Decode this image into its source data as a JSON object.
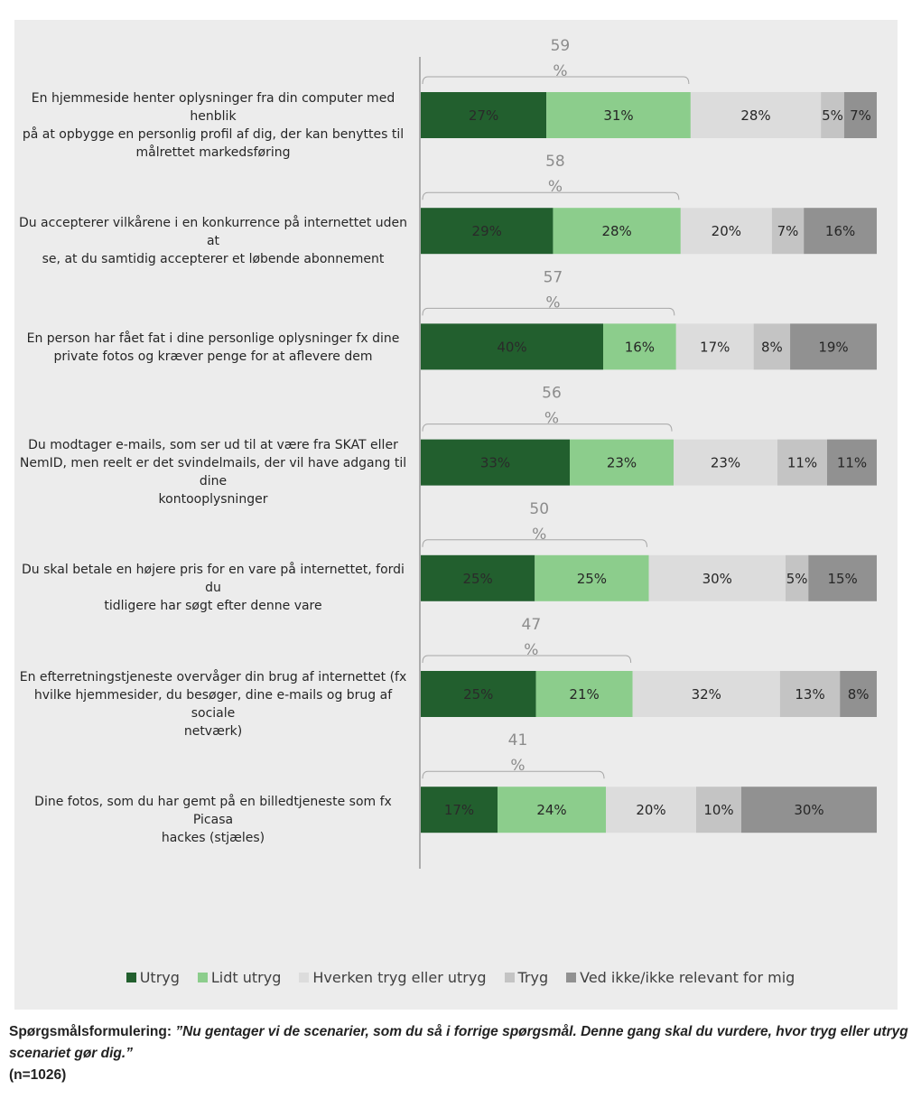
{
  "chart_data": {
    "type": "bar",
    "orientation": "horizontal",
    "stacked": true,
    "percent_suffix": "%",
    "colors": [
      "#225f2e",
      "#8ccd8c",
      "#dcdcdc",
      "#c4c4c4",
      "#919191"
    ],
    "categories": [
      "En hjemmeside henter oplysninger fra din computer med henblik på at opbygge en personlig profil af dig, der kan benyttes til målrettet markedsføring",
      "Du accepterer vilkårene i en konkurrence på internettet uden at se, at du samtidig accepterer et løbende abonnement",
      "En person har fået fat i dine personlige oplysninger fx dine private fotos og kræver penge for at aflevere dem",
      "Du modtager e-mails, som ser ud til at være fra SKAT eller NemID, men reelt er det svindelmails, der vil have adgang til dine kontooplysninger",
      "Du skal betale en højere pris for en vare på internettet, fordi du tidligere har søgt efter denne vare",
      "En efterretningstjeneste overvåger din brug af internettet (fx hvilke hjemmesider, du besøger, dine e-mails og brug af sociale netværk)",
      "Dine fotos, som du har gemt på en billedtjeneste som fx Picasa hackes (stjæles)"
    ],
    "category_lines": [
      [
        "En hjemmeside henter oplysninger fra din computer med henblik",
        "på at opbygge en personlig profil af dig, der kan benyttes til",
        "målrettet markedsføring"
      ],
      [
        "Du accepterer vilkårene i en konkurrence på internettet uden at",
        "se, at du samtidig accepterer et løbende abonnement"
      ],
      [
        "En person har fået fat i dine personlige oplysninger fx dine",
        "private fotos og kræver penge for at aflevere dem"
      ],
      [
        "Du modtager e-mails, som ser ud til at være fra SKAT eller",
        "NemID, men reelt er det svindelmails, der vil have adgang til dine",
        "kontooplysninger"
      ],
      [
        "Du skal betale en højere pris for en vare på internettet, fordi du",
        "tidligere har søgt efter denne vare"
      ],
      [
        "En efterretningstjeneste overvåger din brug af internettet (fx",
        "hvilke hjemmesider, du besøger, dine e-mails og brug af sociale",
        "netværk)"
      ],
      [
        "Dine fotos, som du har gemt på en billedtjeneste som fx Picasa",
        "hackes (stjæles)"
      ]
    ],
    "series": [
      {
        "name": "Utryg",
        "values": [
          27,
          29,
          40,
          33,
          25,
          25,
          17
        ]
      },
      {
        "name": "Lidt utryg",
        "values": [
          31,
          28,
          16,
          23,
          25,
          21,
          24
        ]
      },
      {
        "name": "Hverken tryg eller utryg",
        "values": [
          28,
          20,
          17,
          23,
          30,
          32,
          20
        ]
      },
      {
        "name": "Tryg",
        "values": [
          5,
          7,
          8,
          11,
          5,
          13,
          10
        ]
      },
      {
        "name": "Ved ikke/ikke relevant for mig",
        "values": [
          7,
          16,
          19,
          11,
          15,
          8,
          30
        ]
      }
    ],
    "bracket_totals": [
      59,
      58,
      57,
      56,
      50,
      47,
      41
    ],
    "legend_position": "bottom",
    "grid": false
  },
  "footnote": {
    "lead": "Spørgsmålsformulering:",
    "question": "”Nu gentager vi de scenarier, som du så i forrige spørgsmål. Denne gang skal du vurdere, hvor tryg eller utryg scenariet gør dig.”",
    "n": "(n=1026)"
  }
}
